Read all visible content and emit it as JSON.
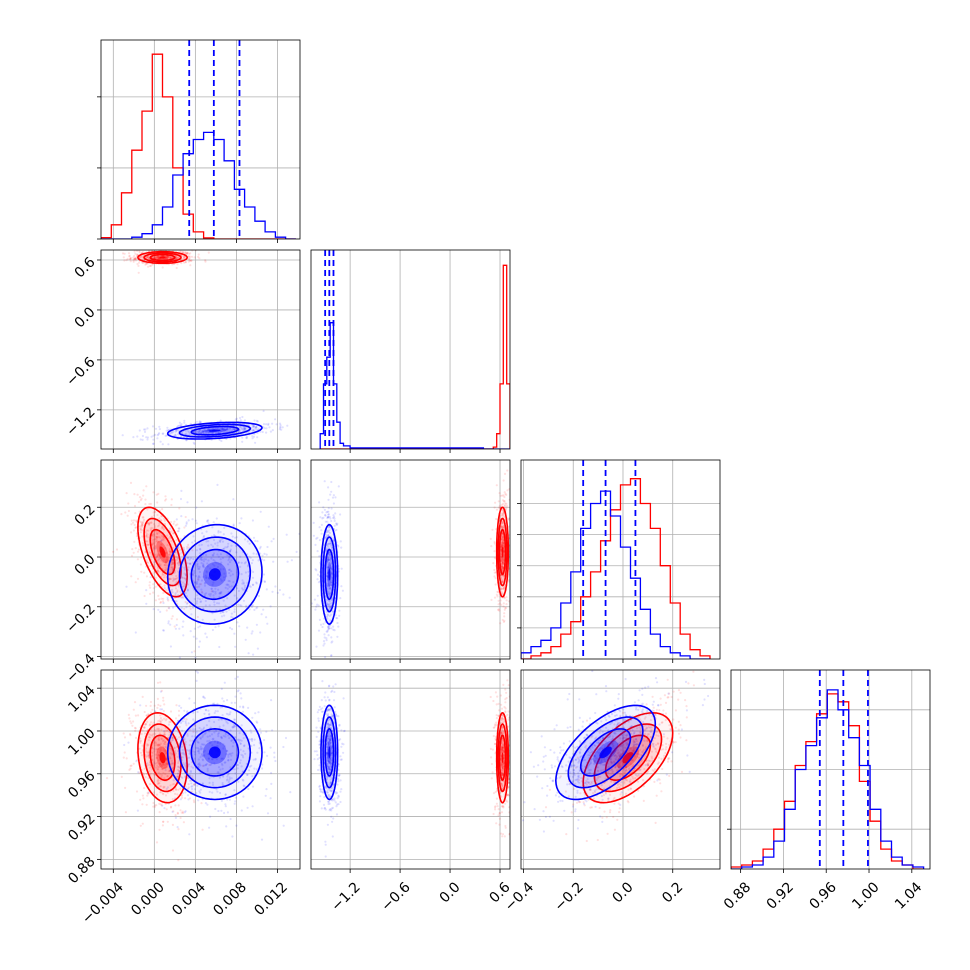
{
  "chart_data": {
    "type": "corner",
    "grid": true,
    "parameters": [
      {
        "range": [
          -0.0052,
          0.0142
        ],
        "ticks": [
          -0.004,
          0.0,
          0.004,
          0.008,
          0.012
        ],
        "tick_labels": [
          "−0.004",
          "0.000",
          "0.004",
          "0.008",
          "0.012"
        ]
      },
      {
        "range": [
          -1.67,
          0.72
        ],
        "ticks": [
          -1.2,
          -0.6,
          0.0,
          0.6
        ],
        "tick_labels": [
          "−1.2",
          "−0.6",
          "0.0",
          "0.6"
        ]
      },
      {
        "range": [
          -0.41,
          0.39
        ],
        "ticks": [
          -0.4,
          -0.2,
          0.0,
          0.2
        ],
        "tick_labels": [
          "−0.4",
          "−0.2",
          "0.0",
          "0.2"
        ]
      },
      {
        "range": [
          0.871,
          1.057
        ],
        "ticks": [
          0.88,
          0.92,
          0.96,
          1.0,
          1.04
        ],
        "tick_labels": [
          "0.88",
          "0.92",
          "0.96",
          "1.00",
          "1.04"
        ]
      }
    ],
    "series": [
      {
        "color": "#ff0000",
        "means": [
          0.0008,
          0.63,
          0.02,
          0.975
        ],
        "sds": [
          0.0012,
          0.035,
          0.09,
          0.021
        ],
        "corr": [
          [
            0,
            2,
            -0.55
          ],
          [
            0,
            3,
            -0.2
          ],
          [
            2,
            3,
            0.55
          ]
        ]
      },
      {
        "color": "#0000ff",
        "means": [
          0.0059,
          -1.45,
          -0.07,
          0.98
        ],
        "sds": [
          0.0023,
          0.05,
          0.1,
          0.022
        ],
        "corr": [
          [
            0,
            1,
            0.35
          ],
          [
            0,
            2,
            0.05
          ],
          [
            2,
            3,
            0.6
          ]
        ]
      }
    ],
    "quantile_lines": {
      "color": "#0000ff",
      "values": [
        [
          0.0034,
          0.0058,
          0.0083
        ],
        [
          -1.5,
          -1.45,
          -1.4
        ],
        [
          -0.16,
          -0.07,
          0.05
        ],
        [
          0.954,
          0.976,
          0.999
        ]
      ]
    },
    "histograms": [
      {
        "edges": [
          -0.0052,
          -0.0042,
          -0.0032,
          -0.0022,
          -0.0012,
          -0.0002,
          0.0008,
          0.0018,
          0.0028,
          0.0038,
          0.0048,
          0.0058,
          0.0068,
          0.0078,
          0.0088,
          0.0098,
          0.0108,
          0.0118,
          0.0128,
          0.0138
        ],
        "counts": [
          [
            0.4,
            4,
            13,
            25,
            36,
            52,
            40,
            20,
            7,
            2,
            0.3,
            0,
            0,
            0,
            0,
            0,
            0,
            0,
            0
          ],
          [
            0,
            0,
            0,
            0.5,
            1.5,
            4,
            9,
            18,
            24,
            28,
            30,
            28,
            22,
            14,
            9,
            5,
            2,
            0.5,
            0
          ]
        ],
        "ymax": 56,
        "yticks": [
          0,
          20,
          40
        ]
      },
      {
        "edges": [
          -1.56,
          -1.52,
          -1.48,
          -1.44,
          -1.4,
          -1.36,
          -1.32,
          -1.28,
          -1.2,
          -0.8,
          -0.4,
          0.0,
          0.4,
          0.52,
          0.56,
          0.6,
          0.64,
          0.68,
          0.72
        ],
        "counts": [
          [
            0,
            0,
            0,
            0,
            0,
            0,
            0,
            0,
            0,
            0,
            0,
            0,
            0,
            0.5,
            4,
            17,
            48,
            17
          ],
          [
            4,
            17,
            24,
            33,
            17,
            7,
            1.5,
            0.8,
            0.3,
            0.3,
            0.3,
            0.3,
            0,
            0,
            0,
            0,
            0,
            0
          ]
        ],
        "ymax": 52,
        "yticks": []
      },
      {
        "edges": [
          -0.41,
          -0.37,
          -0.33,
          -0.29,
          -0.25,
          -0.21,
          -0.17,
          -0.13,
          -0.09,
          -0.05,
          -0.01,
          0.03,
          0.07,
          0.11,
          0.15,
          0.19,
          0.23,
          0.27,
          0.31,
          0.35
        ],
        "counts": [
          [
            0,
            0.5,
            1,
            2,
            4,
            6,
            10,
            14,
            19,
            24,
            28,
            29,
            25,
            21,
            15,
            9,
            4,
            1.5,
            0.5
          ],
          [
            1,
            2,
            3,
            5,
            9,
            14,
            21,
            25,
            27,
            23,
            18,
            13,
            8,
            4,
            2,
            1,
            0.5,
            0,
            0
          ]
        ],
        "ymax": 32,
        "yticks": [
          5,
          10,
          15,
          20,
          25
        ]
      },
      {
        "edges": [
          0.871,
          0.881,
          0.891,
          0.901,
          0.911,
          0.921,
          0.931,
          0.941,
          0.951,
          0.961,
          0.971,
          0.981,
          0.991,
          1.001,
          1.011,
          1.021,
          1.031,
          1.041,
          1.051
        ],
        "counts": [
          [
            0.5,
            1,
            2,
            5,
            10,
            17,
            26,
            32,
            39,
            44,
            42,
            36,
            22,
            12,
            5,
            2,
            1,
            0
          ],
          [
            0,
            0.5,
            1,
            3,
            7,
            15,
            25,
            31,
            38,
            45,
            40,
            33,
            26,
            15,
            7,
            3,
            1,
            0.5
          ]
        ],
        "ymax": 50,
        "yticks": [
          10,
          25,
          40
        ]
      }
    ]
  }
}
